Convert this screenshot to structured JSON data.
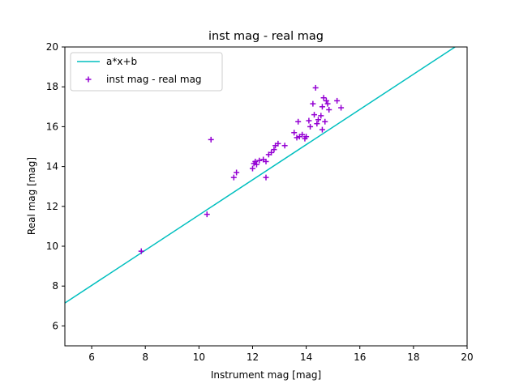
{
  "chart_data": {
    "type": "scatter",
    "title": "inst mag - real mag",
    "xlabel": "Instrument mag [mag]",
    "ylabel": "Real mag [mag]",
    "xlim": [
      5,
      20
    ],
    "ylim": [
      5,
      20
    ],
    "x_ticks": [
      6,
      8,
      10,
      12,
      14,
      16,
      18,
      20
    ],
    "y_ticks": [
      6,
      8,
      10,
      12,
      14,
      16,
      18,
      20
    ],
    "grid": false,
    "legend_position": "top-left",
    "series": [
      {
        "name": "a*x+b",
        "type": "line",
        "color": "#00bfbf",
        "x": [
          5,
          19.55
        ],
        "y": [
          7.15,
          20
        ]
      },
      {
        "name": "inst mag - real mag",
        "type": "scatter",
        "marker": "plus",
        "color": "#9400d3",
        "x": [
          7.85,
          10.3,
          10.45,
          11.3,
          11.4,
          12.0,
          12.05,
          12.1,
          12.15,
          12.25,
          12.4,
          12.5,
          12.5,
          12.6,
          12.7,
          12.8,
          12.85,
          12.95,
          13.2,
          13.55,
          13.65,
          13.7,
          13.75,
          13.85,
          13.95,
          14.0,
          14.1,
          14.15,
          14.25,
          14.3,
          14.35,
          14.4,
          14.45,
          14.55,
          14.6,
          14.6,
          14.65,
          14.7,
          14.75,
          14.8,
          14.85,
          15.15,
          15.3
        ],
        "y": [
          9.75,
          11.6,
          15.35,
          13.45,
          13.7,
          13.9,
          14.15,
          14.25,
          14.1,
          14.3,
          14.35,
          13.45,
          14.25,
          14.6,
          14.7,
          14.85,
          15.05,
          15.15,
          15.05,
          15.7,
          15.45,
          16.25,
          15.5,
          15.6,
          15.4,
          15.5,
          16.3,
          16.0,
          17.15,
          16.6,
          17.95,
          16.15,
          16.35,
          16.55,
          17.0,
          15.85,
          17.45,
          16.25,
          17.3,
          17.15,
          16.85,
          17.3,
          16.95
        ]
      }
    ]
  }
}
